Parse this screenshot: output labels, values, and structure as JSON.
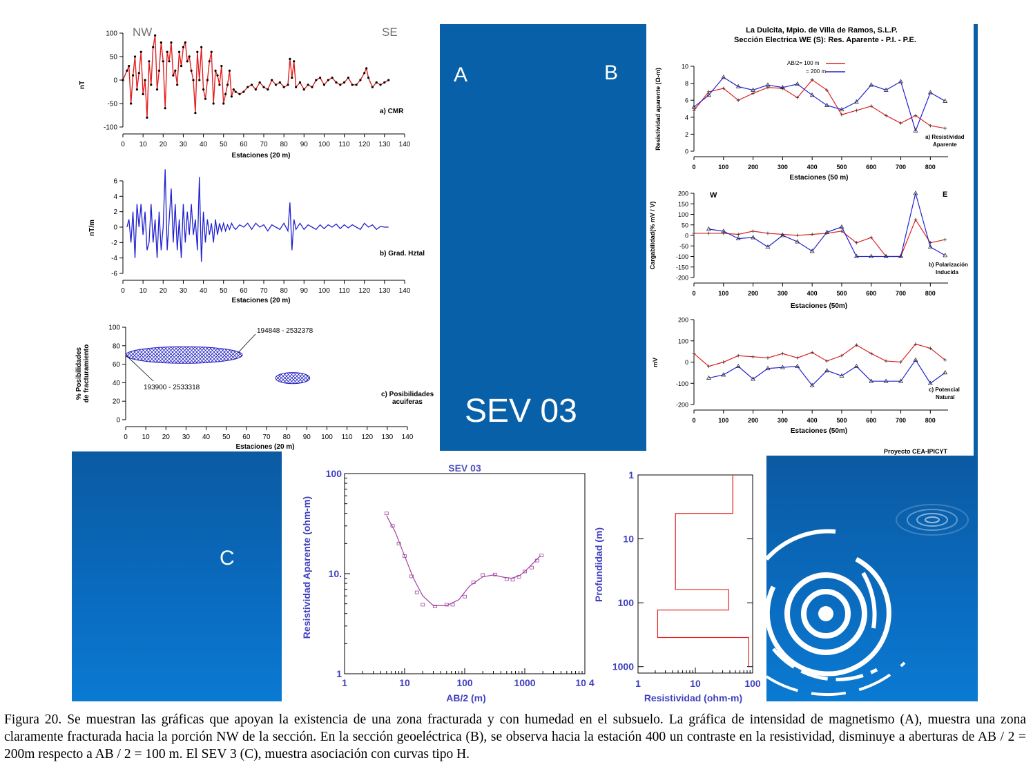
{
  "panel_labels": {
    "a": "A",
    "b": "B",
    "c": "C",
    "sev": "SEV 03"
  },
  "colors": {
    "red": "#e02020",
    "blue": "#2020d0",
    "dark_blue_block": "#0860a8",
    "purple": "#a040a0",
    "axis_blue": "#4040c0"
  },
  "caption": "Figura 20. Se muestran las gráficas que apoyan la existencia de una zona fracturada y con humedad en el subsuelo. La gráfica de intensidad de magnetismo (A), muestra una zona claramente fracturada hacia la porción NW de la sección. En la sección geoeléctrica (B), se observa hacia la estación 400 un contraste en la resistividad, disminuye a aberturas de AB / 2 = 200m respecto a AB / 2 = 100 m. El SEV 3 (C), muestra asociación con curvas tipo H.",
  "chart_data": [
    {
      "id": "cmr",
      "type": "line",
      "tag": "a) CMR",
      "left_label": "NW",
      "right_label": "SE",
      "xlabel": "Estaciones (20 m)",
      "ylabel": "nT",
      "xlim": [
        0,
        140
      ],
      "ylim": [
        -100,
        100
      ],
      "xticks": [
        0,
        10,
        20,
        30,
        40,
        50,
        60,
        70,
        80,
        90,
        100,
        110,
        120,
        130,
        140
      ],
      "yticks": [
        100,
        50,
        0,
        -50,
        -100
      ],
      "series": [
        {
          "name": "CMR",
          "color": "#e02020",
          "x": [
            0,
            2,
            3,
            4,
            5,
            6,
            7,
            8,
            9,
            10,
            11,
            12,
            13,
            14,
            15,
            16,
            17,
            18,
            19,
            20,
            21,
            22,
            23,
            24,
            25,
            26,
            27,
            28,
            29,
            30,
            31,
            32,
            33,
            34,
            35,
            36,
            37,
            38,
            39,
            40,
            41,
            42,
            43,
            44,
            45,
            46,
            47,
            48,
            49,
            50,
            51,
            52,
            53,
            54,
            55,
            56,
            58,
            60,
            62,
            64,
            66,
            68,
            70,
            72,
            74,
            76,
            78,
            80,
            82,
            83,
            84,
            85,
            86,
            88,
            90,
            92,
            94,
            96,
            98,
            100,
            102,
            104,
            106,
            108,
            110,
            112,
            114,
            116,
            118,
            120,
            121,
            122,
            124,
            126,
            128,
            130,
            132
          ],
          "y": [
            0,
            20,
            30,
            -50,
            10,
            50,
            -20,
            15,
            60,
            -30,
            0,
            -80,
            40,
            -10,
            70,
            95,
            -20,
            20,
            80,
            40,
            -60,
            60,
            40,
            80,
            10,
            20,
            -10,
            60,
            30,
            70,
            80,
            40,
            50,
            20,
            0,
            -70,
            60,
            0,
            70,
            -20,
            -40,
            0,
            40,
            60,
            -50,
            20,
            10,
            -10,
            30,
            -50,
            -30,
            -10,
            20,
            -35,
            -20,
            -25,
            -30,
            -25,
            -15,
            -10,
            -20,
            -5,
            -15,
            -20,
            0,
            -10,
            -5,
            -15,
            -10,
            45,
            5,
            40,
            -15,
            -5,
            -20,
            -10,
            -15,
            0,
            5,
            -10,
            0,
            5,
            -5,
            -10,
            -5,
            5,
            -10,
            -10,
            0,
            15,
            25,
            5,
            -15,
            -5,
            -10,
            -5,
            0
          ]
        }
      ]
    },
    {
      "id": "grad",
      "type": "line",
      "tag": "b) Grad. Hztal",
      "xlabel": "Estaciones (20 m)",
      "ylabel": "nT/m",
      "xlim": [
        0,
        140
      ],
      "ylim": [
        -6,
        6
      ],
      "xticks": [
        0,
        10,
        20,
        30,
        40,
        50,
        60,
        70,
        80,
        90,
        100,
        110,
        120,
        130,
        140
      ],
      "yticks": [
        6,
        4,
        2,
        0,
        -2,
        -4,
        -6
      ],
      "series": [
        {
          "name": "Grad",
          "color": "#2020d0",
          "x": [
            2,
            3,
            4,
            5,
            6,
            7,
            8,
            9,
            10,
            11,
            12,
            13,
            14,
            15,
            16,
            17,
            18,
            19,
            20,
            21,
            22,
            23,
            24,
            25,
            26,
            27,
            28,
            29,
            30,
            31,
            32,
            33,
            34,
            35,
            36,
            37,
            38,
            39,
            40,
            41,
            42,
            43,
            44,
            45,
            46,
            47,
            48,
            49,
            50,
            51,
            52,
            53,
            54,
            55,
            56,
            58,
            60,
            62,
            64,
            66,
            68,
            70,
            72,
            74,
            76,
            78,
            80,
            82,
            83,
            84,
            85,
            86,
            88,
            90,
            92,
            94,
            96,
            98,
            100,
            102,
            104,
            106,
            108,
            110,
            112,
            114,
            116,
            118,
            120,
            122,
            124,
            126,
            128,
            130,
            132
          ],
          "y": [
            0,
            1,
            -2,
            2,
            -4,
            3,
            0,
            3,
            -1,
            2,
            -3,
            -2,
            3,
            -2,
            1,
            -4,
            2,
            -3,
            0,
            7.5,
            -3,
            1,
            5,
            -2,
            3,
            -3,
            1,
            -4,
            3,
            -2,
            2,
            -1,
            3,
            -1,
            1,
            -3,
            6.5,
            -4.5,
            2,
            -2,
            1,
            -1,
            0.5,
            -2,
            1,
            -1,
            0.5,
            -0.5,
            0.5,
            -0.5,
            0.3,
            -0.3,
            0.5,
            0,
            -0.3,
            0.3,
            0,
            0.5,
            -0.3,
            0.5,
            0,
            0.3,
            -0.5,
            0.3,
            0,
            -0.3,
            0.5,
            -0.5,
            3.2,
            -3,
            1,
            -0.3,
            0.5,
            -0.3,
            0.3,
            0,
            -0.3,
            0.3,
            -0.2,
            0.3,
            0,
            0.4,
            -0.2,
            0.3,
            -0.1,
            0.3,
            0,
            -0.3,
            0.5,
            0,
            0.3,
            -0.3,
            0.1,
            0,
            0
          ]
        }
      ]
    },
    {
      "id": "posib",
      "type": "scatter",
      "tag_1": "c) Posibilidades",
      "tag_2": "acuiferas",
      "xlabel": "Estaciones (20 m)",
      "ylabel_1": "% Posibilidades",
      "ylabel_2": "de fracturamiento",
      "xlim": [
        0,
        140
      ],
      "ylim": [
        0,
        100
      ],
      "xticks": [
        0,
        10,
        20,
        30,
        40,
        50,
        60,
        70,
        80,
        90,
        100,
        110,
        120,
        130,
        140
      ],
      "yticks": [
        100,
        80,
        60,
        40,
        20,
        0
      ],
      "zones": [
        {
          "cx": 29,
          "cy": 70,
          "rx": 29,
          "ry": 9,
          "label_1": "194848 - 2532378",
          "label_2": "193900 - 2533318"
        },
        {
          "cx": 83,
          "cy": 45,
          "rx": 8.5,
          "ry": 6
        }
      ]
    },
    {
      "id": "res_app",
      "type": "line",
      "title_1": "La Dulcita, Mpio. de Villa de Ramos, S.L.P.",
      "title_2": "Sección Electrica WE (S): Res. Aparente - P.I. -  P.E.",
      "tag_1": "a) Resistividad",
      "tag_2": "Aparente",
      "xlabel": "Estaciones (50 m)",
      "ylabel": "Resistividad aparente (Ω-m)",
      "legend_1": "AB/2= 100 m",
      "legend_2": "= 200 m",
      "xlim": [
        0,
        860
      ],
      "ylim": [
        0,
        10
      ],
      "xticks": [
        0,
        100,
        200,
        300,
        400,
        500,
        600,
        700,
        800
      ],
      "yticks": [
        10,
        8,
        6,
        4,
        2,
        0
      ],
      "x": [
        0,
        50,
        100,
        150,
        200,
        250,
        300,
        350,
        400,
        450,
        500,
        550,
        600,
        650,
        700,
        750,
        800,
        850
      ],
      "series": [
        {
          "name": "AB/2= 100 m",
          "color": "#e02020",
          "values": [
            4.8,
            7.0,
            7.4,
            6.0,
            6.8,
            7.5,
            7.4,
            6.3,
            8.4,
            7.2,
            4.3,
            4.8,
            5.3,
            4.2,
            3.3,
            4.2,
            3.0,
            2.7
          ]
        },
        {
          "name": "= 200 m",
          "color": "#2020d0",
          "values": [
            5.2,
            6.6,
            8.7,
            7.6,
            7.2,
            7.8,
            7.5,
            7.9,
            6.6,
            5.4,
            4.9,
            5.8,
            7.8,
            7.2,
            8.2,
            2.4,
            6.9,
            5.9
          ]
        }
      ]
    },
    {
      "id": "pol",
      "type": "line",
      "tag_1": "b) Polarización",
      "tag_2": "Inducida",
      "left_label": "W",
      "right_label": "E",
      "xlabel": "Estaciones (50m)",
      "ylabel": "Cargabilidad(% mV / V)",
      "xlim": [
        0,
        860
      ],
      "ylim": [
        -200,
        200
      ],
      "xticks": [
        0,
        100,
        200,
        300,
        400,
        500,
        600,
        700,
        800
      ],
      "yticks": [
        200,
        150,
        100,
        50,
        0,
        -50,
        -100,
        -150,
        -200
      ],
      "x": [
        0,
        50,
        100,
        150,
        200,
        250,
        300,
        350,
        400,
        450,
        500,
        550,
        600,
        650,
        700,
        750,
        800,
        850
      ],
      "series": [
        {
          "name": "AB/2= 100 m",
          "color": "#e02020",
          "values": [
            10,
            10,
            10,
            5,
            20,
            10,
            5,
            0,
            5,
            10,
            20,
            -35,
            -10,
            -100,
            -100,
            75,
            -35,
            -20
          ]
        },
        {
          "name": "= 200 m",
          "color": "#2020d0",
          "values": [
            null,
            30,
            20,
            -15,
            -10,
            -55,
            0,
            -30,
            -75,
            15,
            40,
            -100,
            -100,
            -100,
            -100,
            200,
            -55,
            -95
          ]
        }
      ]
    },
    {
      "id": "pot",
      "type": "line",
      "tag_1": "c) Potencial",
      "tag_2": "Natural",
      "xlabel": "Estaciones (50m)",
      "ylabel": "mV",
      "xlim": [
        0,
        860
      ],
      "ylim": [
        -200,
        200
      ],
      "xticks": [
        0,
        100,
        200,
        300,
        400,
        500,
        600,
        700,
        800
      ],
      "yticks": [
        200,
        100,
        0,
        -100,
        -200
      ],
      "footer": "Proyecto CEA-IPICYT",
      "x": [
        0,
        50,
        100,
        150,
        200,
        250,
        300,
        350,
        400,
        450,
        500,
        550,
        600,
        650,
        700,
        750,
        800,
        850
      ],
      "series": [
        {
          "name": "AB/2= 100 m",
          "color": "#e02020",
          "values": [
            40,
            -20,
            0,
            30,
            25,
            20,
            40,
            20,
            45,
            5,
            30,
            80,
            40,
            5,
            0,
            85,
            65,
            10
          ]
        },
        {
          "name": "= 200 m",
          "color": "#2020d0",
          "values": [
            null,
            -75,
            -60,
            -20,
            -80,
            -30,
            -25,
            -20,
            -110,
            -40,
            -65,
            -20,
            -90,
            -90,
            -90,
            10,
            -100,
            -50
          ]
        }
      ]
    },
    {
      "id": "sev",
      "type": "scatter",
      "title": "SEV 03",
      "xlabel": "AB/2 (m)",
      "ylabel": "Resistividad Aparente (ohm-m)",
      "xscale": "log",
      "yscale": "log",
      "xlim": [
        1,
        10000
      ],
      "ylim": [
        1,
        100
      ],
      "xtick_labels": [
        "1",
        "10",
        "100",
        "1000",
        "10 4"
      ],
      "ytick_labels": [
        "100",
        "10.",
        "1"
      ],
      "points": {
        "x": [
          5,
          6.3,
          8,
          10,
          13,
          16,
          20,
          32,
          50,
          63,
          100,
          140,
          200,
          320,
          500,
          630,
          800,
          1000,
          1300,
          1600,
          1900
        ],
        "y": [
          40,
          30,
          20,
          15,
          9.4,
          6.5,
          4.9,
          4.7,
          4.9,
          4.9,
          5.9,
          8.2,
          9.7,
          9.8,
          8.8,
          8.7,
          9.3,
          10.5,
          11.5,
          13.5,
          15.2
        ]
      },
      "curve": {
        "x": [
          5,
          7,
          10,
          14,
          20,
          30,
          50,
          80,
          120,
          200,
          300,
          450,
          600,
          800,
          1000,
          1300,
          1800
        ],
        "y": [
          38,
          26,
          15,
          9,
          6,
          4.8,
          4.8,
          5.5,
          7.5,
          9.3,
          9.7,
          9.2,
          9.0,
          9.5,
          10.5,
          12.3,
          15
        ]
      },
      "curve_color": "#a040a0"
    },
    {
      "id": "model",
      "type": "line",
      "xlabel": "Resistividad (ohm-m)",
      "ylabel": "Profundidad (m)",
      "xscale": "log",
      "yscale": "log",
      "xlim": [
        1,
        100
      ],
      "ylim": [
        1,
        1000
      ],
      "xtick_labels": [
        "1",
        "10",
        "100"
      ],
      "ytick_labels": [
        "1",
        "10",
        "100",
        "1000"
      ],
      "layers": {
        "resistivity": [
          45,
          4.5,
          38,
          2.2,
          85
        ],
        "top_depth": [
          1,
          4,
          62,
          130,
          350
        ]
      },
      "line_color": "#e02020"
    }
  ]
}
